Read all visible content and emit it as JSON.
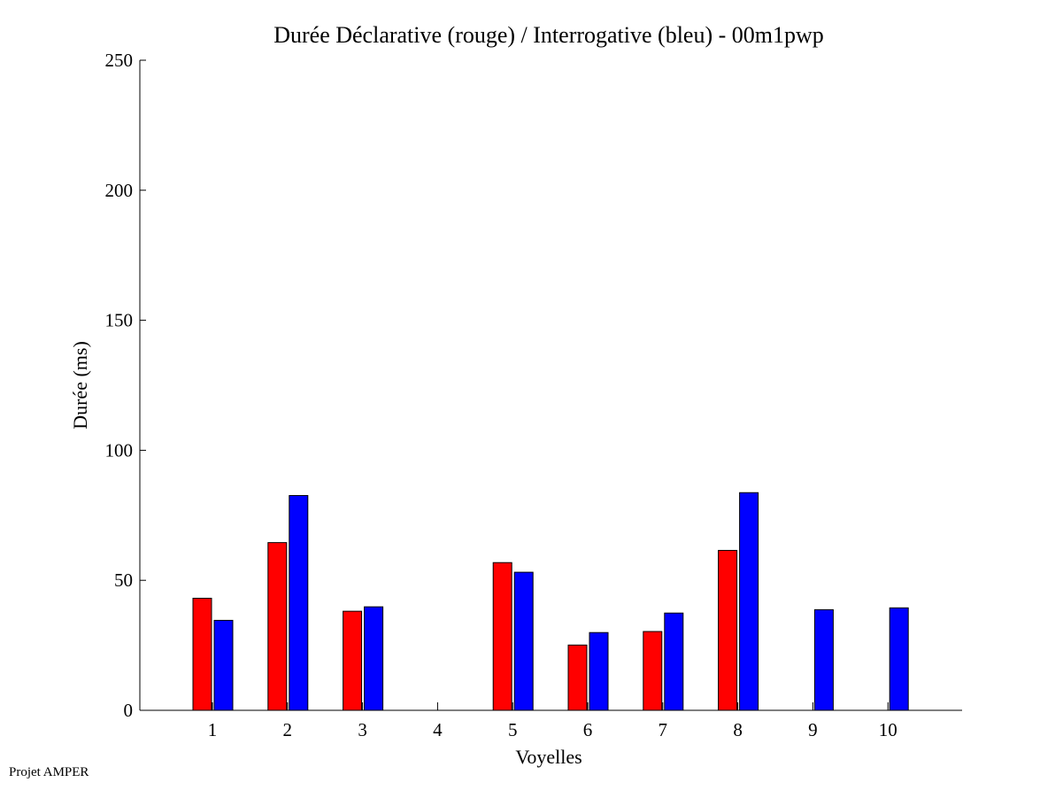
{
  "chart_data": {
    "type": "bar",
    "title": "Durée Déclarative (rouge) / Interrogative (bleu) - 00m1pwp",
    "xlabel": "Voyelles",
    "ylabel": "Durée (ms)",
    "ylim": [
      0,
      250
    ],
    "xlim": [
      0,
      11
    ],
    "yticks": [
      0,
      50,
      100,
      150,
      200,
      250
    ],
    "categories": [
      "1",
      "2",
      "3",
      "4",
      "5",
      "6",
      "7",
      "8",
      "9",
      "10"
    ],
    "grid": false,
    "series": [
      {
        "name": "Déclarative (rouge)",
        "color": "#ff0000",
        "values": [
          43.1,
          64.5,
          38.1,
          null,
          56.8,
          25.1,
          30.3,
          61.5,
          null,
          null
        ]
      },
      {
        "name": "Interrogative (bleu)",
        "color": "#0000ff",
        "values": [
          34.6,
          82.6,
          39.8,
          null,
          53.1,
          29.9,
          37.4,
          83.7,
          38.7,
          39.4
        ]
      }
    ]
  },
  "footer": "Projet AMPER"
}
